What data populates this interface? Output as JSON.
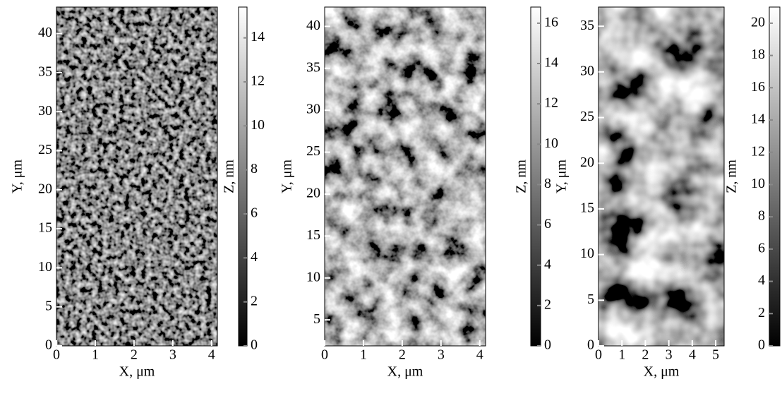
{
  "chart_data": [
    {
      "type": "image",
      "x_label": "X, μm",
      "y_label": "Y, μm",
      "z_label": "Z, nm",
      "xlim": [
        0,
        4.15
      ],
      "xticks": [
        0,
        1,
        2,
        3,
        4
      ],
      "ylim": [
        0,
        43.4
      ],
      "yticks": [
        0,
        5,
        10,
        15,
        20,
        25,
        30,
        35,
        40
      ],
      "zlim": [
        0,
        15.4
      ],
      "zticks": [
        0,
        2,
        4,
        6,
        8,
        10,
        12,
        14
      ]
    },
    {
      "type": "image",
      "x_label": "X, μm",
      "y_label": "Y, μm",
      "z_label": "Z, nm",
      "xlim": [
        0,
        4.15
      ],
      "xticks": [
        0,
        1,
        2,
        3,
        4
      ],
      "ylim": [
        1.9,
        42.3
      ],
      "yticks": [
        5,
        10,
        15,
        20,
        25,
        30,
        35,
        40
      ],
      "zlim": [
        0,
        16.8
      ],
      "zticks": [
        0,
        2,
        4,
        6,
        8,
        10,
        12,
        14,
        16
      ]
    },
    {
      "type": "image",
      "x_label": "X, μm",
      "y_label": "Y, μm",
      "z_label": "Z, nm",
      "xlim": [
        0,
        5.36
      ],
      "xticks": [
        0,
        1,
        2,
        3,
        4,
        5
      ],
      "ylim": [
        0,
        37.1
      ],
      "yticks": [
        0,
        5,
        10,
        15,
        20,
        25,
        30,
        35
      ],
      "zlim": [
        0,
        21
      ],
      "zticks": [
        0,
        2,
        4,
        6,
        8,
        10,
        12,
        14,
        16,
        18,
        20
      ]
    }
  ]
}
